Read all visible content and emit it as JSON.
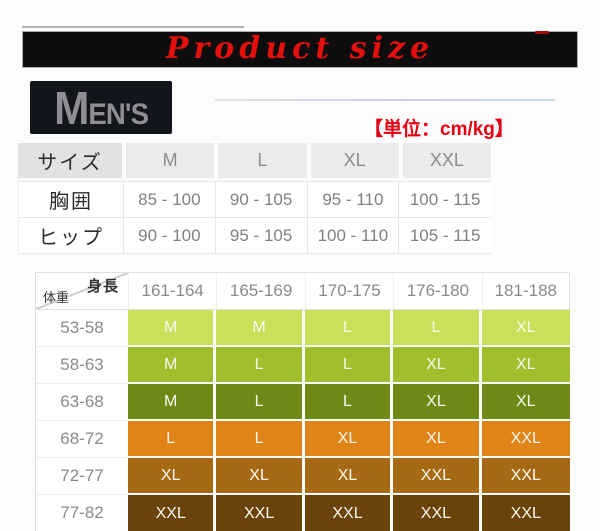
{
  "banner": {
    "title": "Product size",
    "bg": "#0d0d0d",
    "text_color": "#e4100e"
  },
  "logo": {
    "first_letter": "M",
    "rest": "EN'S"
  },
  "unit_label": {
    "text": "【単位：cm/kg】",
    "color": "#e60012"
  },
  "chart_data": [
    {
      "type": "table",
      "name": "size-measurements",
      "header": [
        "サイズ",
        "M",
        "L",
        "XL",
        "XXL"
      ],
      "rows": [
        {
          "label": "胸囲",
          "values": [
            "85 - 100",
            "90 - 105",
            "95 - 110",
            "100 - 115"
          ]
        },
        {
          "label": "ヒップ",
          "values": [
            "90 - 100",
            "95 - 105",
            "100 - 110",
            "105 - 115"
          ]
        }
      ]
    },
    {
      "type": "table",
      "name": "height-weight-size-matrix",
      "corner_top_right": "身長",
      "corner_bottom_left": "体重",
      "columns": [
        "161-164",
        "165-169",
        "170-175",
        "176-180",
        "181-188"
      ],
      "rows": [
        {
          "weight": "53-58",
          "cell_color": "#cbdf58",
          "sizes": [
            "M",
            "M",
            "L",
            "L",
            "XL"
          ]
        },
        {
          "weight": "58-63",
          "cell_color": "#a1bf2c",
          "sizes": [
            "M",
            "L",
            "L",
            "XL",
            "XL"
          ]
        },
        {
          "weight": "63-68",
          "cell_color": "#6e8916",
          "sizes": [
            "M",
            "L",
            "L",
            "XL",
            "XL"
          ]
        },
        {
          "weight": "68-72",
          "cell_color": "#e08418",
          "sizes": [
            "L",
            "L",
            "XL",
            "XL",
            "XXL"
          ]
        },
        {
          "weight": "72-77",
          "cell_color": "#a76a14",
          "sizes": [
            "XL",
            "XL",
            "XL",
            "XXL",
            "XXL"
          ]
        },
        {
          "weight": "77-82",
          "cell_color": "#6a430a",
          "sizes": [
            "XXL",
            "XXL",
            "XXL",
            "XXL",
            "XXL"
          ]
        }
      ]
    }
  ]
}
